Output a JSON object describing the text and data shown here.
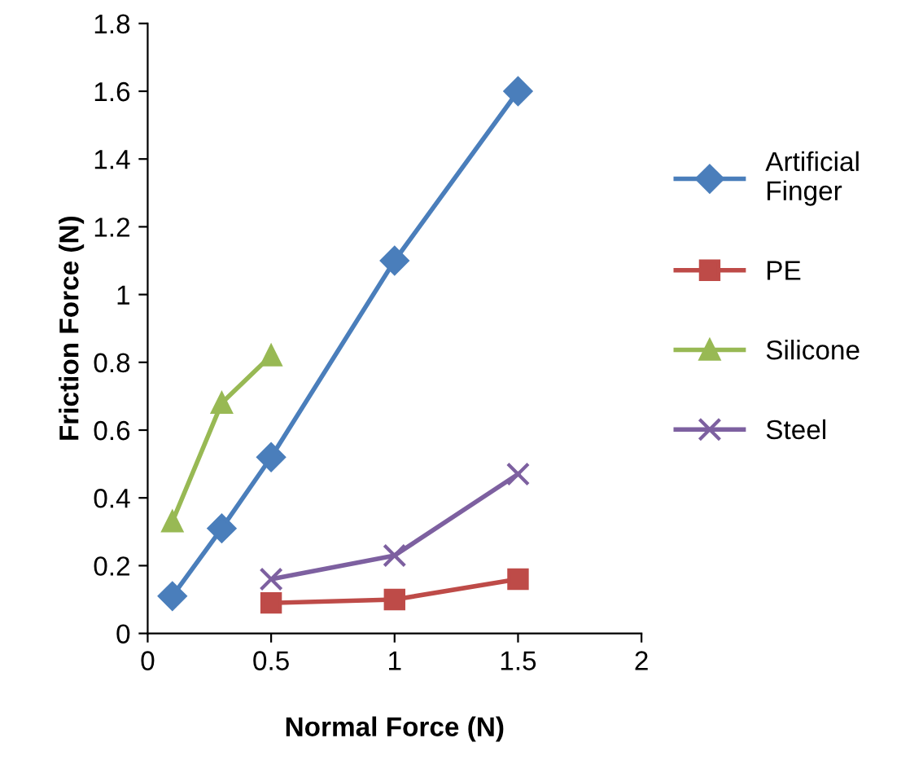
{
  "chart_data": {
    "type": "line",
    "xlabel": "Normal Force (N)",
    "ylabel": "Friction Force (N)",
    "xlim": [
      0,
      2
    ],
    "xticks": [
      0,
      0.5,
      1,
      1.5,
      2
    ],
    "ylim": [
      0,
      1.8
    ],
    "yticks": [
      0,
      0.2,
      0.4,
      0.6,
      0.8,
      1,
      1.2,
      1.4,
      1.6,
      1.8
    ],
    "grid": false,
    "legend": "right",
    "series": [
      {
        "name": "Artificial Finger",
        "color": "#4a7ebb",
        "marker": "diamond",
        "x": [
          0.1,
          0.3,
          0.5,
          1,
          1.5
        ],
        "values": [
          0.11,
          0.31,
          0.52,
          1.1,
          1.6
        ]
      },
      {
        "name": "PE",
        "color": "#be4b48",
        "marker": "square",
        "x": [
          0.5,
          1,
          1.5
        ],
        "values": [
          0.09,
          0.1,
          0.16
        ]
      },
      {
        "name": "Silicone",
        "color": "#98b954",
        "marker": "triangle",
        "x": [
          0.1,
          0.3,
          0.5
        ],
        "values": [
          0.33,
          0.68,
          0.82
        ]
      },
      {
        "name": "Steel",
        "color": "#7d60a0",
        "marker": "cross",
        "x": [
          0.5,
          1,
          1.5
        ],
        "values": [
          0.16,
          0.23,
          0.47
        ]
      }
    ]
  }
}
